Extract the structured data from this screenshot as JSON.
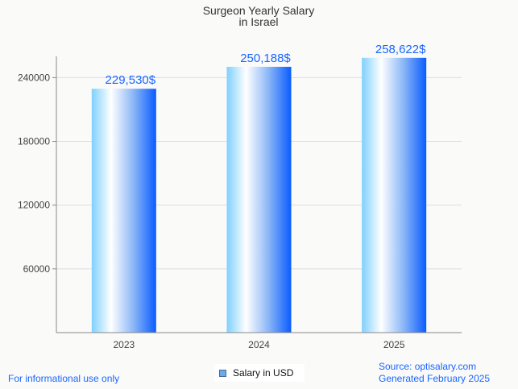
{
  "chart_data": {
    "type": "bar",
    "title": [
      "Surgeon Yearly Salary",
      "in Israel"
    ],
    "categories": [
      "2023",
      "2024",
      "2025"
    ],
    "values": [
      229530,
      250188,
      258622
    ],
    "data_labels": [
      "229,530$",
      "250,188$",
      "258,622$"
    ],
    "yticks": [
      60000,
      120000,
      180000,
      240000
    ],
    "ylim": [
      0,
      260000
    ],
    "xlabel": "",
    "ylabel": "",
    "grid": true,
    "legend": {
      "label": "Salary in USD",
      "placement": "bottom-center"
    },
    "colors": {
      "label": "#1a66ff",
      "bar_start": "#7fd0ff",
      "bar_mid": "#ffffff",
      "bar_end": "#0a5cff"
    }
  },
  "footer": {
    "left": "For informational use only",
    "source": "Source: optisalary.com",
    "generated": "Generated February 2025"
  }
}
